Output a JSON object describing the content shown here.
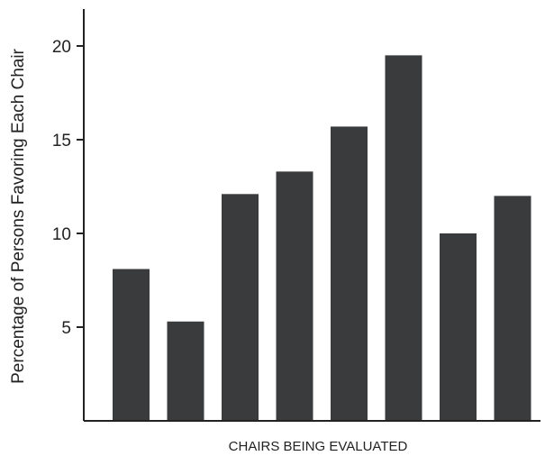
{
  "chart_data": {
    "type": "bar",
    "title": "",
    "xlabel": "CHAIRS BEING EVALUATED",
    "ylabel": "Percentage of Persons Favoring Each Chair",
    "categories": [
      "",
      "",
      "",
      "",
      "",
      "",
      "",
      ""
    ],
    "values": [
      8.1,
      5.3,
      12.1,
      13.3,
      15.7,
      19.5,
      10.0,
      12.0
    ],
    "ylim": [
      0,
      22
    ],
    "yticks": [
      5,
      10,
      15,
      20
    ],
    "grid": false,
    "legend": "none",
    "colors": {
      "bar": "#3a3b3c",
      "axis": "#222222",
      "text": "#222222"
    }
  }
}
